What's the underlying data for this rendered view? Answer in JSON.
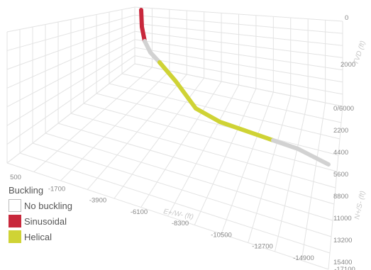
{
  "chart_data": {
    "type": "3d-line",
    "legend_title": "Buckling",
    "legend": [
      {
        "label": "No buckling",
        "color": "#ffffff"
      },
      {
        "label": "Sinusoidal",
        "color": "#c8283c"
      },
      {
        "label": "Helical",
        "color": "#cfd335"
      }
    ],
    "axes": {
      "x": {
        "label": "E+/W- (ft)",
        "ticks": [
          "500",
          "-1700",
          "-3900",
          "-6100",
          "-8300",
          "-10500",
          "-12700",
          "-14900",
          "-17100"
        ]
      },
      "z": {
        "label": "N+/S- (ft)",
        "ticks": [
          "0/6000",
          "2200",
          "4400",
          "5600",
          "8800",
          "11000",
          "13200",
          "15400"
        ]
      },
      "y": {
        "label": "TVD (ft)",
        "ticks": [
          "0",
          "2000"
        ]
      }
    },
    "grid": true
  }
}
